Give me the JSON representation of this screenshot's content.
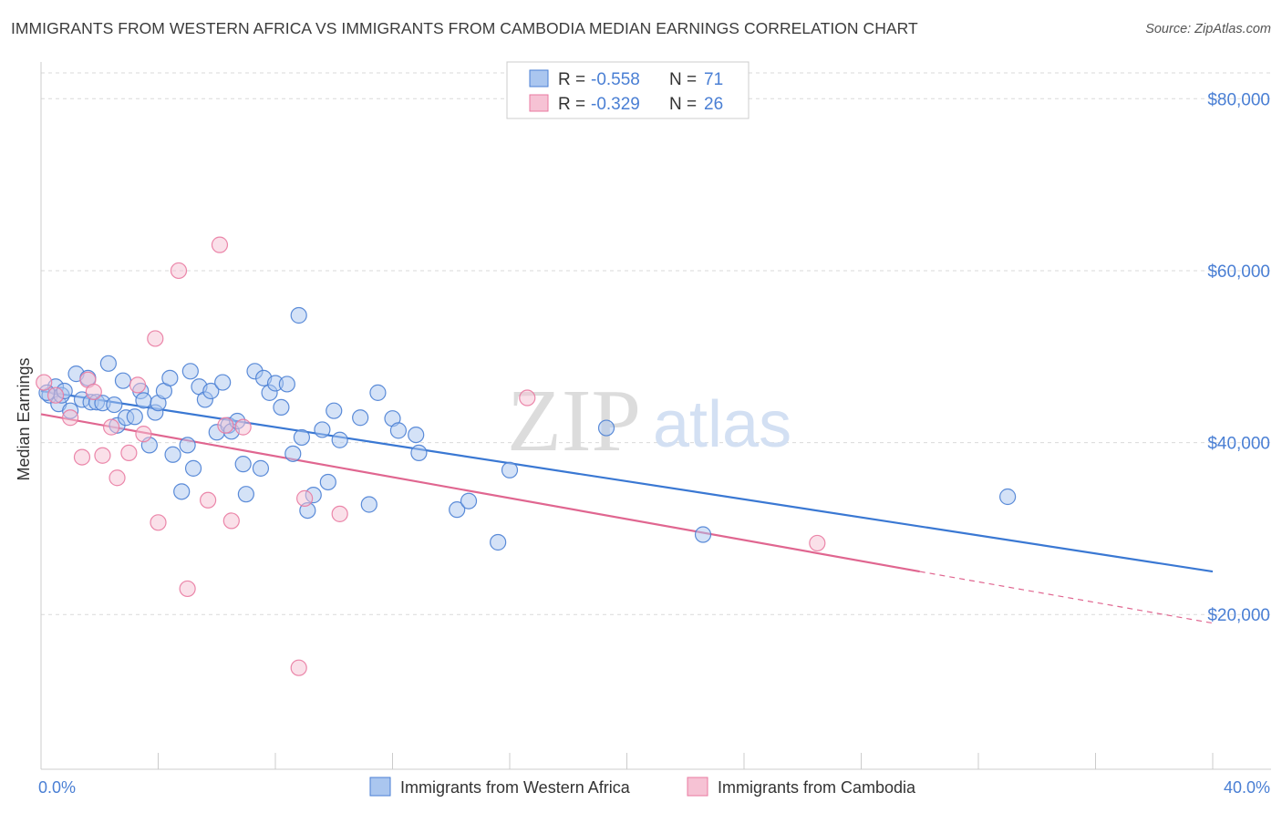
{
  "title": "IMMIGRANTS FROM WESTERN AFRICA VS IMMIGRANTS FROM CAMBODIA MEDIAN EARNINGS CORRELATION CHART",
  "source": "Source: ZipAtlas.com",
  "watermark": {
    "zip": "ZIP",
    "atlas": "atlas"
  },
  "colors": {
    "blue": "#4a7fd4",
    "blue_line": "#3a78d3",
    "blue_fill": "#aac6ef",
    "pink": "#e97aa1",
    "pink_line": "#e06690",
    "pink_fill": "#f6c2d4",
    "grid": "#d9d9d9"
  },
  "stats": [
    {
      "r_label": "R =",
      "r_value": "-0.558",
      "n_label": "N =",
      "n_value": "71"
    },
    {
      "r_label": "R =",
      "r_value": "-0.329",
      "n_label": "N =",
      "n_value": "26"
    }
  ],
  "chart_data": {
    "type": "scatter",
    "ylabel": "Median Earnings",
    "xlim": [
      0,
      40
    ],
    "ylim": [
      2000,
      83000
    ],
    "x_tick_labels": [
      "0.0%",
      "40.0%"
    ],
    "y_ticks": [
      20000,
      40000,
      60000,
      80000
    ],
    "y_tick_labels": [
      "$20,000",
      "$40,000",
      "$60,000",
      "$80,000"
    ],
    "grid": true,
    "legend_position": "bottom",
    "series": [
      {
        "name": "Immigrants from Western Africa",
        "color": "#4a7fd4",
        "trend": {
          "x": [
            0,
            40
          ],
          "y": [
            46000,
            25000
          ]
        },
        "points": [
          [
            0.3,
            45500
          ],
          [
            0.5,
            46500
          ],
          [
            0.6,
            44500
          ],
          [
            0.7,
            45500
          ],
          [
            0.8,
            46000
          ],
          [
            1.0,
            43700
          ],
          [
            1.2,
            48000
          ],
          [
            1.4,
            45000
          ],
          [
            1.6,
            47500
          ],
          [
            1.7,
            44700
          ],
          [
            1.9,
            44700
          ],
          [
            2.1,
            44600
          ],
          [
            2.3,
            49200
          ],
          [
            2.5,
            44400
          ],
          [
            2.6,
            42000
          ],
          [
            2.8,
            47200
          ],
          [
            2.9,
            42900
          ],
          [
            3.2,
            43000
          ],
          [
            3.4,
            46000
          ],
          [
            3.5,
            44900
          ],
          [
            3.7,
            39700
          ],
          [
            3.9,
            43500
          ],
          [
            4.0,
            44600
          ],
          [
            4.2,
            46000
          ],
          [
            4.4,
            47500
          ],
          [
            4.5,
            38600
          ],
          [
            4.8,
            34300
          ],
          [
            5.0,
            39700
          ],
          [
            5.1,
            48300
          ],
          [
            5.2,
            37000
          ],
          [
            5.4,
            46500
          ],
          [
            5.6,
            45000
          ],
          [
            5.8,
            46000
          ],
          [
            6.0,
            41200
          ],
          [
            6.2,
            47000
          ],
          [
            6.4,
            42000
          ],
          [
            6.5,
            41300
          ],
          [
            6.7,
            42500
          ],
          [
            6.9,
            37500
          ],
          [
            7.0,
            34000
          ],
          [
            7.3,
            48300
          ],
          [
            7.5,
            37000
          ],
          [
            7.6,
            47500
          ],
          [
            7.8,
            45800
          ],
          [
            8.0,
            46900
          ],
          [
            8.2,
            44100
          ],
          [
            8.4,
            46800
          ],
          [
            8.6,
            38700
          ],
          [
            8.8,
            54800
          ],
          [
            8.9,
            40600
          ],
          [
            9.1,
            32100
          ],
          [
            9.3,
            33900
          ],
          [
            9.6,
            41500
          ],
          [
            9.8,
            35400
          ],
          [
            10.0,
            43700
          ],
          [
            10.2,
            40300
          ],
          [
            10.9,
            42900
          ],
          [
            11.2,
            32800
          ],
          [
            11.5,
            45800
          ],
          [
            12.0,
            42800
          ],
          [
            12.2,
            41400
          ],
          [
            12.8,
            40900
          ],
          [
            12.9,
            38800
          ],
          [
            14.2,
            32200
          ],
          [
            14.6,
            33200
          ],
          [
            15.6,
            28400
          ],
          [
            16.0,
            36800
          ],
          [
            19.3,
            41700
          ],
          [
            22.6,
            29300
          ],
          [
            33.0,
            33700
          ],
          [
            0.2,
            45800
          ]
        ]
      },
      {
        "name": "Immigrants from Cambodia",
        "color": "#e97aa1",
        "trend": {
          "x": [
            0,
            30
          ],
          "y": [
            43300,
            25000
          ]
        },
        "trend_dashed": {
          "x": [
            30,
            40
          ],
          "y": [
            25000,
            19000
          ]
        },
        "points": [
          [
            0.1,
            47000
          ],
          [
            0.5,
            45500
          ],
          [
            1.0,
            42900
          ],
          [
            1.4,
            38300
          ],
          [
            1.6,
            47300
          ],
          [
            1.8,
            45900
          ],
          [
            2.1,
            38500
          ],
          [
            2.4,
            41800
          ],
          [
            2.6,
            35900
          ],
          [
            3.0,
            38800
          ],
          [
            3.3,
            46700
          ],
          [
            3.5,
            41000
          ],
          [
            3.9,
            52100
          ],
          [
            4.0,
            30700
          ],
          [
            4.7,
            60000
          ],
          [
            5.0,
            23000
          ],
          [
            5.7,
            33300
          ],
          [
            6.1,
            63000
          ],
          [
            6.3,
            42000
          ],
          [
            6.5,
            30900
          ],
          [
            6.9,
            41800
          ],
          [
            8.8,
            13800
          ],
          [
            9.0,
            33500
          ],
          [
            10.2,
            31700
          ],
          [
            16.6,
            45200
          ],
          [
            26.5,
            28300
          ]
        ]
      }
    ]
  }
}
